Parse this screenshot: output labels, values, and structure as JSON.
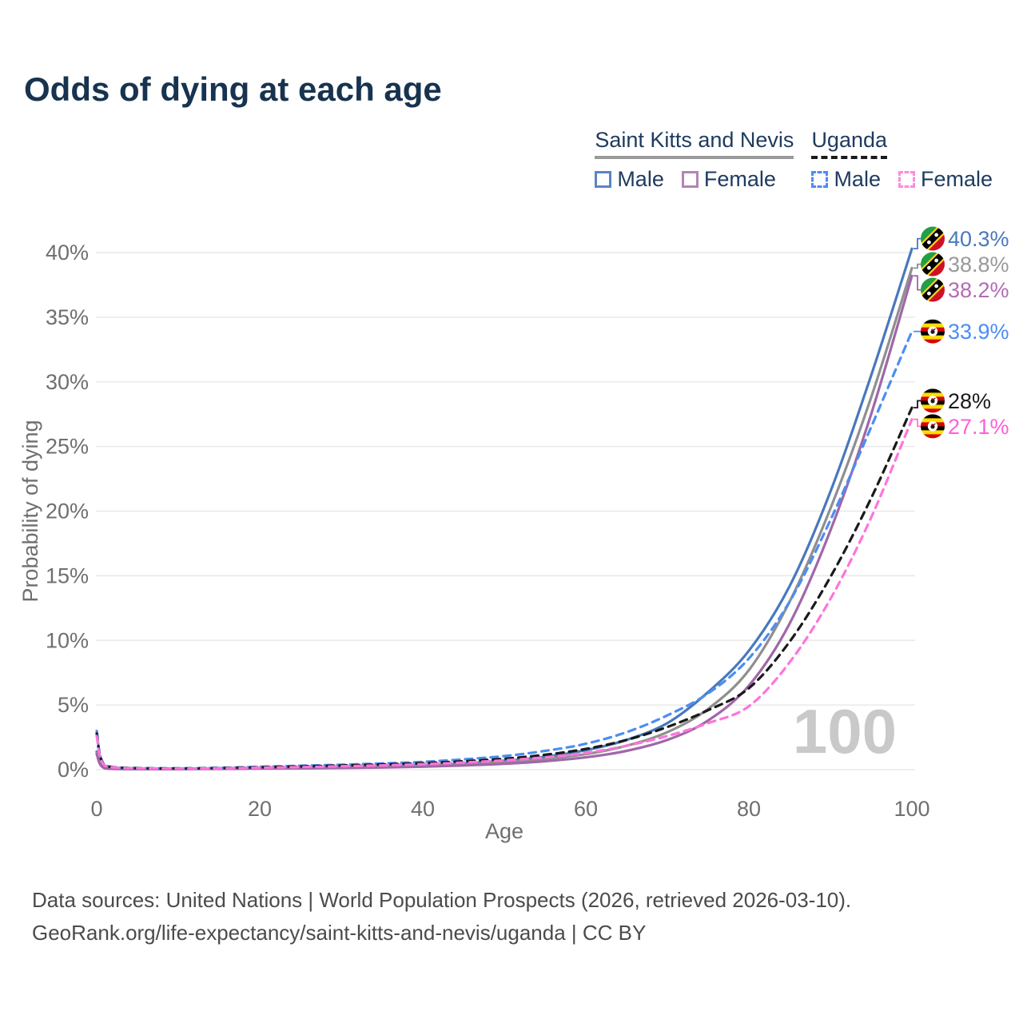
{
  "title": "Odds of dying at each age",
  "legend": {
    "groups": [
      {
        "country": "Saint Kitts and Nevis",
        "line_style": "solid",
        "items": [
          {
            "label": "Male",
            "color": "#5b84c4"
          },
          {
            "label": "Female",
            "color": "#b583b3"
          }
        ]
      },
      {
        "country": "Uganda",
        "line_style": "dashed",
        "items": [
          {
            "label": "Male",
            "color": "#4c8df2"
          },
          {
            "label": "Female",
            "color": "#ff8ade"
          }
        ]
      }
    ]
  },
  "chart_data": {
    "type": "line",
    "title": "Odds of dying at each age",
    "xlabel": "Age",
    "ylabel": "Probability of dying",
    "xlim": [
      0,
      100
    ],
    "ylim": [
      0,
      40
    ],
    "x_ticks": [
      0,
      20,
      40,
      60,
      80,
      100
    ],
    "y_ticks": [
      0,
      5,
      10,
      15,
      20,
      25,
      30,
      35,
      40
    ],
    "y_tick_suffix": "%",
    "grid": true,
    "legend_position": "top-right",
    "watermark": "100",
    "ages": [
      0,
      1,
      5,
      10,
      15,
      20,
      25,
      30,
      35,
      40,
      45,
      50,
      55,
      60,
      65,
      70,
      75,
      80,
      85,
      90,
      95,
      100
    ],
    "series": [
      {
        "name": "Saint Kitts and Nevis — Male",
        "flag_icon": "flag-saint-kitts-and-nevis",
        "color": "#4878bd",
        "label_color": "#4878bd",
        "dash": false,
        "end_label": "40.3%",
        "values": [
          1.4,
          0.12,
          0.06,
          0.06,
          0.09,
          0.13,
          0.16,
          0.2,
          0.26,
          0.34,
          0.48,
          0.7,
          1.0,
          1.5,
          2.3,
          3.6,
          6.0,
          9.2,
          14.2,
          21.5,
          30.5,
          40.3
        ]
      },
      {
        "name": "Saint Kitts and Nevis — Both sexes",
        "flag_icon": "flag-saint-kitts-and-nevis",
        "color": "#8f8f8f",
        "label_color": "#999999",
        "dash": false,
        "end_label": "38.8%",
        "values": [
          1.3,
          0.11,
          0.05,
          0.05,
          0.08,
          0.11,
          0.14,
          0.17,
          0.22,
          0.29,
          0.4,
          0.57,
          0.83,
          1.2,
          1.85,
          2.9,
          4.7,
          7.7,
          13.0,
          20.2,
          28.8,
          38.8
        ]
      },
      {
        "name": "Saint Kitts and Nevis — Female",
        "flag_icon": "flag-saint-kitts-and-nevis",
        "color": "#a067a8",
        "label_color": "#b36ab5",
        "dash": false,
        "end_label": "38.2%",
        "values": [
          1.2,
          0.1,
          0.04,
          0.04,
          0.06,
          0.08,
          0.1,
          0.13,
          0.17,
          0.23,
          0.32,
          0.45,
          0.65,
          0.95,
          1.45,
          2.3,
          3.8,
          6.5,
          11.3,
          18.5,
          27.5,
          38.2
        ]
      },
      {
        "name": "Uganda — Male",
        "flag_icon": "flag-uganda",
        "color": "#4c8df2",
        "label_color": "#4c8df2",
        "dash": true,
        "end_label": "33.9%",
        "values": [
          3.0,
          0.35,
          0.12,
          0.1,
          0.14,
          0.22,
          0.3,
          0.38,
          0.48,
          0.6,
          0.8,
          1.05,
          1.45,
          2.0,
          2.9,
          4.2,
          5.9,
          8.6,
          13.0,
          19.3,
          26.5,
          33.9
        ]
      },
      {
        "name": "Uganda — Both sexes",
        "flag_icon": "flag-uganda",
        "color": "#1a1a1a",
        "label_color": "#1a1a1a",
        "dash": true,
        "end_label": "28%",
        "values": [
          2.8,
          0.32,
          0.11,
          0.09,
          0.12,
          0.18,
          0.25,
          0.32,
          0.4,
          0.5,
          0.65,
          0.85,
          1.15,
          1.6,
          2.3,
          3.3,
          4.6,
          6.3,
          9.9,
          14.9,
          21.0,
          28.0
        ]
      },
      {
        "name": "Uganda — Female",
        "flag_icon": "flag-uganda",
        "color": "#ff74dc",
        "label_color": "#ff5fd6",
        "dash": true,
        "end_label": "27.1%",
        "values": [
          2.6,
          0.3,
          0.1,
          0.08,
          0.1,
          0.15,
          0.2,
          0.26,
          0.33,
          0.42,
          0.55,
          0.72,
          0.95,
          1.3,
          1.85,
          2.6,
          3.6,
          4.9,
          8.3,
          13.2,
          19.5,
          27.1
        ]
      }
    ]
  },
  "footer": {
    "line1": "Data sources: United Nations | World Population Prospects (2026, retrieved 2026-03-10).",
    "line2": "GeoRank.org/life-expectancy/saint-kitts-and-nevis/uganda | CC BY"
  }
}
